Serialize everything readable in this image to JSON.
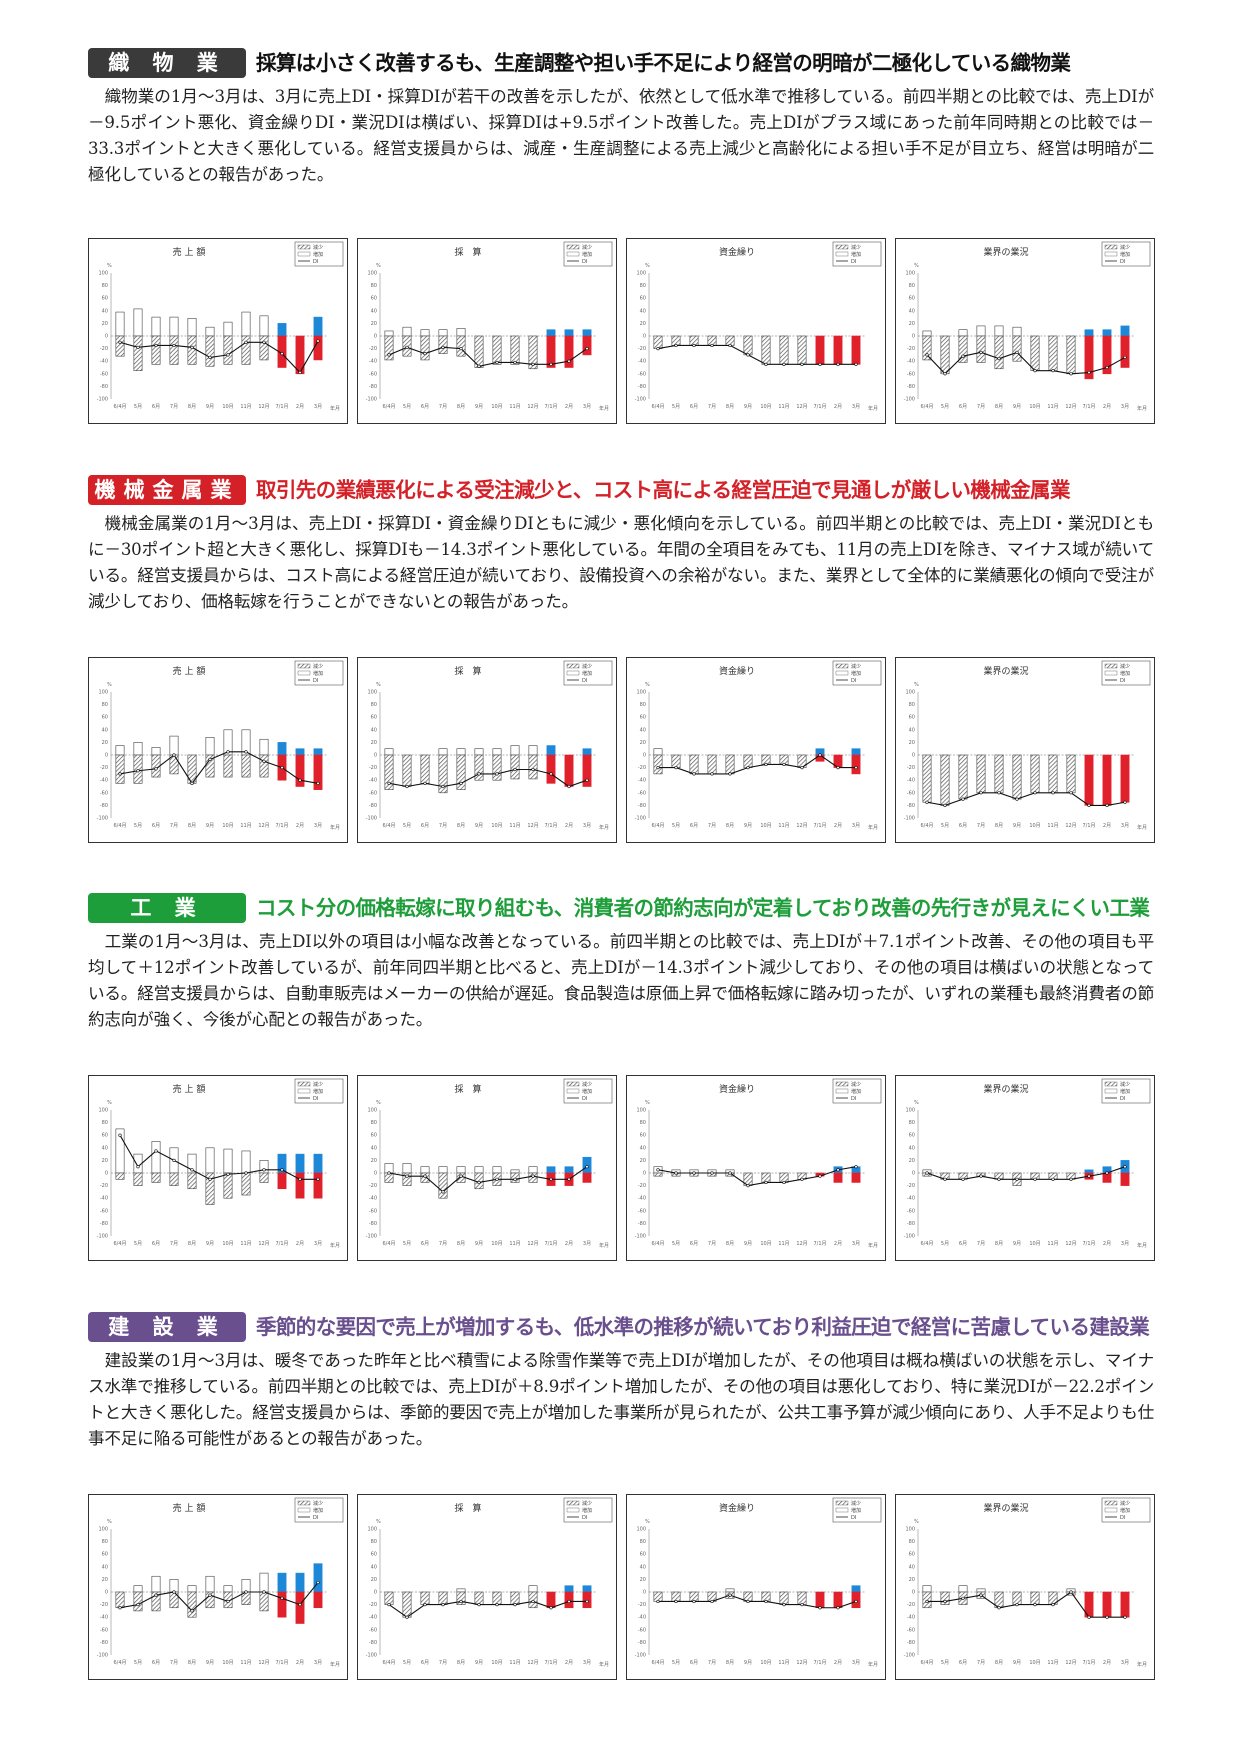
{
  "sections": [
    {
      "id": "textile",
      "badge": "織 物 業",
      "badge_color": "#3a3a3a",
      "headline_color": "#111111",
      "headline": "採算は小さく改善するも、生産調整や担い手不足により経営の明暗が二極化している織物業",
      "body": "織物業の1月～3月は、3月に売上DI・採算DIが若干の改善を示したが、依然として低水準で推移している。前四半期との比較では、売上DIが－9.5ポイント悪化、資金繰りDI・業況DIは横ばい、採算DIは+9.5ポイント改善した。売上DIがプラス域にあった前年同時期との比較では－33.3ポイントと大きく悪化している。経営支援員からは、減産・生産調整による売上減少と高齢化による担い手不足が目立ち、経営は明暗が二極化しているとの報告があった。"
    },
    {
      "id": "machinery",
      "badge": "機械金属業",
      "badge_color": "#d42027",
      "headline_color": "#d42027",
      "headline": "取引先の業績悪化による受注減少と、コスト高による経営圧迫で見通しが厳しい機械金属業",
      "body": "機械金属業の1月～3月は、売上DI・採算DI・資金繰りDIともに減少・悪化傾向を示している。前四半期との比較では、売上DI・業況DIともに－30ポイント超と大きく悪化し、採算DIも－14.3ポイント悪化している。年間の全項目をみても、11月の売上DIを除き、マイナス域が続いている。経営支援員からは、コスト高による経営圧迫が続いており、設備投資への余裕がない。また、業界として全体的に業績悪化の傾向で受注が減少しており、価格転嫁を行うことができないとの報告があった。"
    },
    {
      "id": "industry",
      "badge": "工 業",
      "badge_color": "#1e9e3a",
      "headline_color": "#1e9e3a",
      "headline": "コスト分の価格転嫁に取り組むも、消費者の節約志向が定着しており改善の先行きが見えにくい工業",
      "body": "工業の1月～3月は、売上DI以外の項目は小幅な改善となっている。前四半期との比較では、売上DIが＋7.1ポイント改善、その他の項目も平均して＋12ポイント改善しているが、前年同四半期と比べると、売上DIが－14.3ポイント減少しており、その他の項目は横ばいの状態となっている。経営支援員からは、自動車販売はメーカーの供給が遅延。食品製造は原価上昇で価格転嫁に踏み切ったが、いずれの業種も最終消費者の節約志向が強く、今後が心配との報告があった。"
    },
    {
      "id": "construction",
      "badge": "建 設 業",
      "badge_color": "#6a4f8e",
      "headline_color": "#6a4f8e",
      "headline": "季節的な要因で売上が増加するも、低水準の推移が続いており利益圧迫で経営に苦慮している建設業",
      "body": "建設業の1月～3月は、暖冬であった昨年と比べ積雪による除雪作業等で売上DIが増加したが、その他項目は概ね横ばいの状態を示し、マイナス水準で推移している。前四半期との比較では、売上DIが＋8.9ポイント増加したが、その他の項目は悪化しており、特に業況DIが－22.2ポイントと大きく悪化した。経営支援員からは、季節的要因で売上が増加した事業所が見られたが、公共工事予算が減少傾向にあり、人手不足よりも仕事不足に陥る可能性があるとの報告があった。"
    }
  ],
  "chart_titles": [
    "売 上 額",
    "採　算",
    "資金繰り",
    "業界の業況"
  ],
  "legend": [
    "減少",
    "増加",
    "DI"
  ],
  "x_labels": [
    "6/4月",
    "5月",
    "6月",
    "7月",
    "8月",
    "9月",
    "10月",
    "11月",
    "12月",
    "7/1月",
    "2月",
    "3月"
  ],
  "x_unit": "年月",
  "y_unit": "%",
  "y_ticks": [
    "100",
    "80",
    "60",
    "40",
    "20",
    "0",
    "-20",
    "-40",
    "-60",
    "-80",
    "-100"
  ],
  "colors": {
    "plus_highlight": "#1e88d8",
    "minus_highlight": "#e0202a"
  },
  "chart_data": [
    {
      "section": "textile",
      "title": "売 上 額",
      "type": "bar",
      "increase": [
        38,
        43,
        30,
        30,
        28,
        14,
        22,
        38,
        32,
        20,
        0,
        30
      ],
      "decrease": [
        -32,
        -55,
        -45,
        -45,
        -45,
        -48,
        -45,
        -45,
        -38,
        -50,
        -60,
        -38
      ],
      "di": [
        -10,
        -18,
        -15,
        -15,
        -18,
        -34,
        -30,
        -10,
        -10,
        -28,
        -58,
        -8
      ]
    },
    {
      "section": "textile",
      "title": "採　算",
      "type": "bar",
      "increase": [
        8,
        14,
        10,
        10,
        12,
        0,
        0,
        0,
        0,
        10,
        10,
        10
      ],
      "decrease": [
        -38,
        -32,
        -38,
        -28,
        -32,
        -50,
        -45,
        -45,
        -52,
        -50,
        -50,
        -30
      ],
      "di": [
        -30,
        -18,
        -28,
        -18,
        -20,
        -48,
        -42,
        -42,
        -45,
        -45,
        -40,
        -20
      ]
    },
    {
      "section": "textile",
      "title": "資金繰り",
      "type": "bar",
      "increase": [
        0,
        0,
        0,
        0,
        0,
        0,
        0,
        0,
        0,
        0,
        0,
        0
      ],
      "decrease": [
        -20,
        -15,
        -15,
        -15,
        -15,
        -30,
        -45,
        -45,
        -45,
        -45,
        -45,
        -45
      ],
      "di": [
        -20,
        -15,
        -15,
        -15,
        -15,
        -30,
        -45,
        -45,
        -45,
        -45,
        -45,
        -45
      ]
    },
    {
      "section": "textile",
      "title": "業界の業況",
      "type": "bar",
      "increase": [
        8,
        0,
        10,
        16,
        16,
        14,
        0,
        0,
        0,
        10,
        10,
        16
      ],
      "decrease": [
        -38,
        -60,
        -42,
        -42,
        -52,
        -40,
        -55,
        -55,
        -60,
        -68,
        -60,
        -50
      ],
      "di": [
        -30,
        -60,
        -32,
        -26,
        -36,
        -26,
        -55,
        -55,
        -60,
        -58,
        -50,
        -34
      ]
    },
    {
      "section": "machinery",
      "title": "売 上 額",
      "type": "bar",
      "increase": [
        15,
        20,
        12,
        30,
        0,
        28,
        40,
        40,
        25,
        20,
        10,
        10
      ],
      "decrease": [
        -45,
        -45,
        -35,
        -30,
        -45,
        -35,
        -35,
        -35,
        -35,
        -40,
        -50,
        -55
      ],
      "di": [
        -30,
        -25,
        -22,
        0,
        -45,
        -7,
        5,
        5,
        -10,
        -20,
        -40,
        -45
      ]
    },
    {
      "section": "machinery",
      "title": "採　算",
      "type": "bar",
      "increase": [
        10,
        0,
        0,
        10,
        10,
        10,
        10,
        15,
        15,
        15,
        0,
        10
      ],
      "decrease": [
        -55,
        -50,
        -45,
        -60,
        -55,
        -40,
        -40,
        -38,
        -38,
        -45,
        -50,
        -50
      ],
      "di": [
        -45,
        -50,
        -45,
        -50,
        -45,
        -30,
        -30,
        -23,
        -23,
        -30,
        -50,
        -40
      ]
    },
    {
      "section": "machinery",
      "title": "資金繰り",
      "type": "bar",
      "increase": [
        10,
        0,
        0,
        0,
        0,
        0,
        0,
        0,
        0,
        10,
        0,
        10
      ],
      "decrease": [
        -30,
        -20,
        -30,
        -30,
        -30,
        -20,
        -15,
        -15,
        -20,
        -10,
        -20,
        -30
      ],
      "di": [
        -20,
        -20,
        -30,
        -30,
        -30,
        -20,
        -15,
        -15,
        -20,
        0,
        -20,
        -20
      ]
    },
    {
      "section": "machinery",
      "title": "業界の業況",
      "type": "bar",
      "increase": [
        0,
        0,
        0,
        0,
        0,
        0,
        0,
        0,
        0,
        0,
        0,
        0
      ],
      "decrease": [
        -75,
        -80,
        -70,
        -60,
        -60,
        -70,
        -60,
        -60,
        -60,
        -80,
        -80,
        -75
      ],
      "di": [
        -75,
        -80,
        -70,
        -60,
        -60,
        -70,
        -60,
        -60,
        -60,
        -80,
        -80,
        -75
      ]
    },
    {
      "section": "industry",
      "title": "売 上 額",
      "type": "bar",
      "increase": [
        70,
        30,
        50,
        40,
        30,
        40,
        38,
        35,
        20,
        30,
        30,
        30
      ],
      "decrease": [
        -10,
        -20,
        -15,
        -20,
        -25,
        -50,
        -40,
        -35,
        -15,
        -25,
        -40,
        -40
      ],
      "di": [
        60,
        10,
        35,
        20,
        5,
        -10,
        -2,
        0,
        5,
        5,
        -10,
        -10
      ]
    },
    {
      "section": "industry",
      "title": "採　算",
      "type": "bar",
      "increase": [
        15,
        15,
        10,
        10,
        10,
        10,
        10,
        5,
        10,
        10,
        10,
        25
      ],
      "decrease": [
        -15,
        -20,
        -15,
        -40,
        -15,
        -25,
        -20,
        -15,
        -15,
        -20,
        -20,
        -15
      ],
      "di": [
        0,
        -5,
        -5,
        -30,
        -5,
        -15,
        -10,
        -10,
        -5,
        -10,
        -10,
        10
      ]
    },
    {
      "section": "industry",
      "title": "資金繰り",
      "type": "bar",
      "increase": [
        10,
        5,
        5,
        5,
        5,
        0,
        0,
        0,
        0,
        0,
        10,
        10
      ],
      "decrease": [
        -5,
        -5,
        -5,
        -5,
        -5,
        -20,
        -15,
        -15,
        -10,
        -5,
        -15,
        -15
      ],
      "di": [
        5,
        0,
        0,
        0,
        0,
        -20,
        -15,
        -15,
        -10,
        -5,
        5,
        10
      ]
    },
    {
      "section": "industry",
      "title": "業界の業況",
      "type": "bar",
      "increase": [
        5,
        0,
        0,
        0,
        0,
        0,
        0,
        0,
        0,
        5,
        10,
        20
      ],
      "decrease": [
        -5,
        -10,
        -10,
        -5,
        -10,
        -20,
        -10,
        -10,
        -10,
        -10,
        -15,
        -20
      ],
      "di": [
        0,
        -10,
        -10,
        -5,
        -10,
        -10,
        -10,
        -10,
        -10,
        -5,
        0,
        10
      ]
    },
    {
      "section": "construction",
      "title": "売 上 額",
      "type": "bar",
      "increase": [
        0,
        10,
        25,
        20,
        10,
        25,
        10,
        20,
        30,
        30,
        30,
        45
      ],
      "decrease": [
        -25,
        -30,
        -30,
        -25,
        -40,
        -25,
        -25,
        -20,
        -30,
        -40,
        -50,
        -25
      ],
      "di": [
        -25,
        -20,
        -5,
        0,
        -30,
        -5,
        -15,
        0,
        0,
        -10,
        -20,
        15
      ]
    },
    {
      "section": "construction",
      "title": "採　算",
      "type": "bar",
      "increase": [
        0,
        0,
        0,
        0,
        5,
        0,
        0,
        0,
        10,
        0,
        10,
        10
      ],
      "decrease": [
        -20,
        -40,
        -20,
        -20,
        -20,
        -20,
        -20,
        -20,
        -25,
        -25,
        -25,
        -25
      ],
      "di": [
        -20,
        -40,
        -20,
        -20,
        -15,
        -20,
        -20,
        -20,
        -15,
        -25,
        -15,
        -15
      ]
    },
    {
      "section": "construction",
      "title": "資金繰り",
      "type": "bar",
      "increase": [
        0,
        0,
        0,
        0,
        5,
        0,
        0,
        0,
        0,
        0,
        0,
        10
      ],
      "decrease": [
        -15,
        -15,
        -15,
        -15,
        -10,
        -15,
        -15,
        -20,
        -20,
        -25,
        -25,
        -25
      ],
      "di": [
        -15,
        -15,
        -15,
        -15,
        -5,
        -15,
        -15,
        -20,
        -20,
        -25,
        -25,
        -15
      ]
    },
    {
      "section": "construction",
      "title": "業界の業況",
      "type": "bar",
      "increase": [
        10,
        0,
        10,
        5,
        0,
        0,
        0,
        0,
        5,
        0,
        0,
        0
      ],
      "decrease": [
        -25,
        -20,
        -20,
        -10,
        -25,
        -20,
        -20,
        -20,
        -5,
        -40,
        -40,
        -40
      ],
      "di": [
        -15,
        -15,
        -10,
        -5,
        -25,
        -20,
        -20,
        -20,
        0,
        -40,
        -40,
        -40
      ]
    }
  ]
}
